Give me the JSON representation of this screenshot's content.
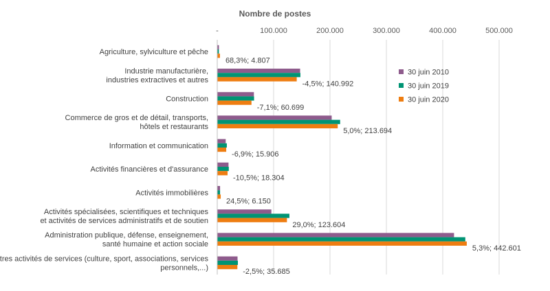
{
  "chart_data": {
    "type": "bar",
    "orientation": "horizontal",
    "title": "",
    "xlabel": "Nombre de postes",
    "ylabel": "",
    "xlim": [
      0,
      500000
    ],
    "x_ticks": [
      {
        "value": 0,
        "label": "-"
      },
      {
        "value": 100000,
        "label": "100.000"
      },
      {
        "value": 200000,
        "label": "200.000"
      },
      {
        "value": 300000,
        "label": "300.000"
      },
      {
        "value": 400000,
        "label": "400.000"
      },
      {
        "value": 500000,
        "label": "500.000"
      }
    ],
    "grid": "vertical",
    "legend_position": "right",
    "categories": [
      [
        "Agriculture, sylviculture et pêche"
      ],
      [
        "Industrie manufacturière,",
        "industries extractives et autres"
      ],
      [
        "Construction"
      ],
      [
        "Commerce de gros et de détail, transports,",
        "hôtels et restaurants"
      ],
      [
        "Information et communication"
      ],
      [
        "Activités financières et d'assurance"
      ],
      [
        "Activités immobilières"
      ],
      [
        "Activités spécialisées, scientifiques et techniques",
        "et activités de services administratifs et de soutien"
      ],
      [
        "Administration publique, défense, enseignement,",
        "santé humaine et action sociale"
      ],
      [
        "Autres activités de services (culture, sport, associations, services",
        "personnels,...)"
      ]
    ],
    "series": [
      {
        "name": "30 juin 2010",
        "color": "#8e5b8c",
        "values": [
          3000,
          147000,
          65000,
          203000,
          15000,
          20000,
          5000,
          96000,
          420000,
          36000
        ]
      },
      {
        "name": "30 juin 2019",
        "color": "#009474",
        "values": [
          2900,
          147500,
          65300,
          218000,
          17000,
          20500,
          5000,
          128000,
          440000,
          36600
        ]
      },
      {
        "name": "30 juin 2020",
        "color": "#ee7d11",
        "values": [
          4807,
          140992,
          60699,
          213694,
          15906,
          18304,
          6150,
          123604,
          442601,
          35685
        ]
      }
    ],
    "data_labels": [
      "68,3%; 4.807",
      "-4,5%; 140.992",
      "-7,1%; 60.699",
      "5,0%; 213.694",
      "-6,9%; 15.906",
      "-10,5%; 18.304",
      "24,5%; 6.150",
      "29,0%; 123.604",
      "5,3%; 442.601",
      "-2,5%; 35.685"
    ]
  }
}
